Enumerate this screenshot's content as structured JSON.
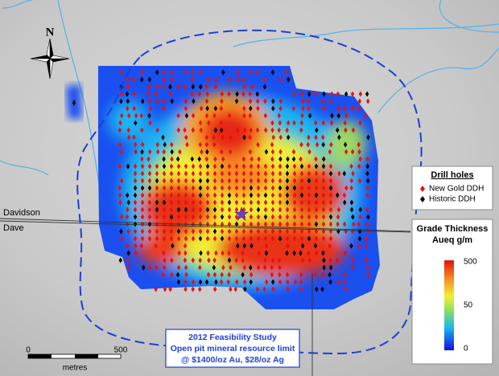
{
  "north_arrow": "N",
  "roads": [
    "Davidson",
    "Dave"
  ],
  "legend": {
    "title": "Drill holes",
    "items": [
      "New Gold DDH",
      "Historic DDH"
    ]
  },
  "colorbar": {
    "title": [
      "Grade Thickness",
      "Aueq g/m"
    ],
    "ticks": [
      500,
      50,
      0
    ]
  },
  "callout": [
    "2012 Feasibility Study",
    "Open pit mineral resource limit",
    "@ $1400/oz Au, $28/oz Ag"
  ],
  "scale_bar": {
    "ticks": [
      0,
      500
    ],
    "unit": "metres"
  }
}
